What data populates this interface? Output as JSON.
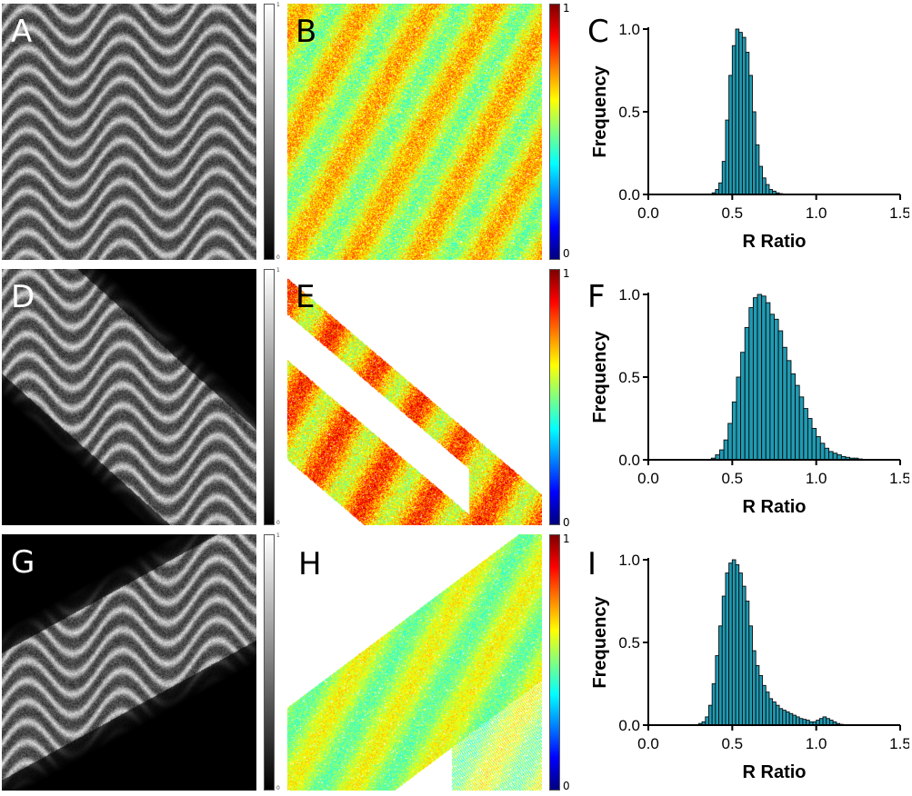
{
  "panels": {
    "A": "A",
    "B": "B",
    "C": "C",
    "D": "D",
    "E": "E",
    "F": "F",
    "G": "G",
    "H": "H",
    "I": "I"
  },
  "colorbars": {
    "gray_max": "1",
    "gray_min": "0",
    "jet_max": "1",
    "jet_min": "0"
  },
  "chart_data": [
    {
      "panel": "C",
      "type": "bar",
      "xlabel": "R Ratio",
      "ylabel": "Frequency",
      "xlim": [
        0.0,
        1.5
      ],
      "ylim": [
        0.0,
        1.0
      ],
      "xticks": [
        "0.0",
        "0.5",
        "1.0",
        "1.5"
      ],
      "yticks": [
        "0.0",
        "0.5",
        "1.0"
      ],
      "bin_width": 0.02,
      "x": [
        0.38,
        0.4,
        0.42,
        0.44,
        0.46,
        0.48,
        0.5,
        0.52,
        0.54,
        0.56,
        0.58,
        0.6,
        0.62,
        0.64,
        0.66,
        0.68,
        0.7,
        0.72,
        0.74,
        0.76,
        0.78
      ],
      "values": [
        0.01,
        0.03,
        0.07,
        0.2,
        0.45,
        0.72,
        0.9,
        1.0,
        0.98,
        0.95,
        0.86,
        0.72,
        0.5,
        0.3,
        0.17,
        0.1,
        0.06,
        0.03,
        0.02,
        0.01,
        0.005
      ],
      "bar_color": "#1f9bb3"
    },
    {
      "panel": "F",
      "type": "bar",
      "xlabel": "R Ratio",
      "ylabel": "Frequency",
      "xlim": [
        0.0,
        1.5
      ],
      "ylim": [
        0.0,
        1.0
      ],
      "xticks": [
        "0.0",
        "0.5",
        "1.0",
        "1.5"
      ],
      "yticks": [
        "0.0",
        "0.5",
        "1.0"
      ],
      "bin_width": 0.025,
      "x": [
        0.375,
        0.4,
        0.425,
        0.45,
        0.475,
        0.5,
        0.525,
        0.55,
        0.575,
        0.6,
        0.625,
        0.65,
        0.675,
        0.7,
        0.725,
        0.75,
        0.775,
        0.8,
        0.825,
        0.85,
        0.875,
        0.9,
        0.925,
        0.95,
        0.975,
        1.0,
        1.025,
        1.05,
        1.075,
        1.1,
        1.125,
        1.15,
        1.175,
        1.2,
        1.225,
        1.25
      ],
      "values": [
        0.01,
        0.03,
        0.06,
        0.12,
        0.22,
        0.35,
        0.5,
        0.65,
        0.8,
        0.92,
        0.98,
        1.0,
        0.99,
        0.95,
        0.88,
        0.85,
        0.78,
        0.68,
        0.6,
        0.52,
        0.45,
        0.38,
        0.31,
        0.25,
        0.19,
        0.14,
        0.1,
        0.07,
        0.05,
        0.04,
        0.03,
        0.02,
        0.015,
        0.01,
        0.01,
        0.005
      ],
      "bar_color": "#1f9bb3"
    },
    {
      "panel": "I",
      "type": "bar",
      "xlabel": "R Ratio",
      "ylabel": "Frequency",
      "xlim": [
        0.0,
        1.5
      ],
      "ylim": [
        0.0,
        1.0
      ],
      "xticks": [
        "0.0",
        "0.5",
        "1.0",
        "1.5"
      ],
      "yticks": [
        "0.0",
        "0.5",
        "1.0"
      ],
      "bin_width": 0.02,
      "x": [
        0.3,
        0.32,
        0.34,
        0.36,
        0.38,
        0.4,
        0.42,
        0.44,
        0.46,
        0.48,
        0.5,
        0.52,
        0.54,
        0.56,
        0.58,
        0.6,
        0.62,
        0.64,
        0.66,
        0.68,
        0.7,
        0.72,
        0.74,
        0.76,
        0.78,
        0.8,
        0.82,
        0.84,
        0.86,
        0.88,
        0.9,
        0.92,
        0.94,
        0.96,
        0.98,
        1.0,
        1.02,
        1.04,
        1.06,
        1.08,
        1.1,
        1.12,
        1.14
      ],
      "values": [
        0.01,
        0.02,
        0.05,
        0.12,
        0.25,
        0.42,
        0.6,
        0.78,
        0.92,
        0.98,
        1.0,
        0.97,
        0.92,
        0.84,
        0.75,
        0.6,
        0.45,
        0.36,
        0.3,
        0.24,
        0.2,
        0.16,
        0.14,
        0.12,
        0.1,
        0.09,
        0.08,
        0.07,
        0.06,
        0.05,
        0.04,
        0.035,
        0.03,
        0.02,
        0.02,
        0.03,
        0.04,
        0.05,
        0.04,
        0.03,
        0.02,
        0.01,
        0.005
      ],
      "bar_color": "#1f9bb3"
    }
  ]
}
